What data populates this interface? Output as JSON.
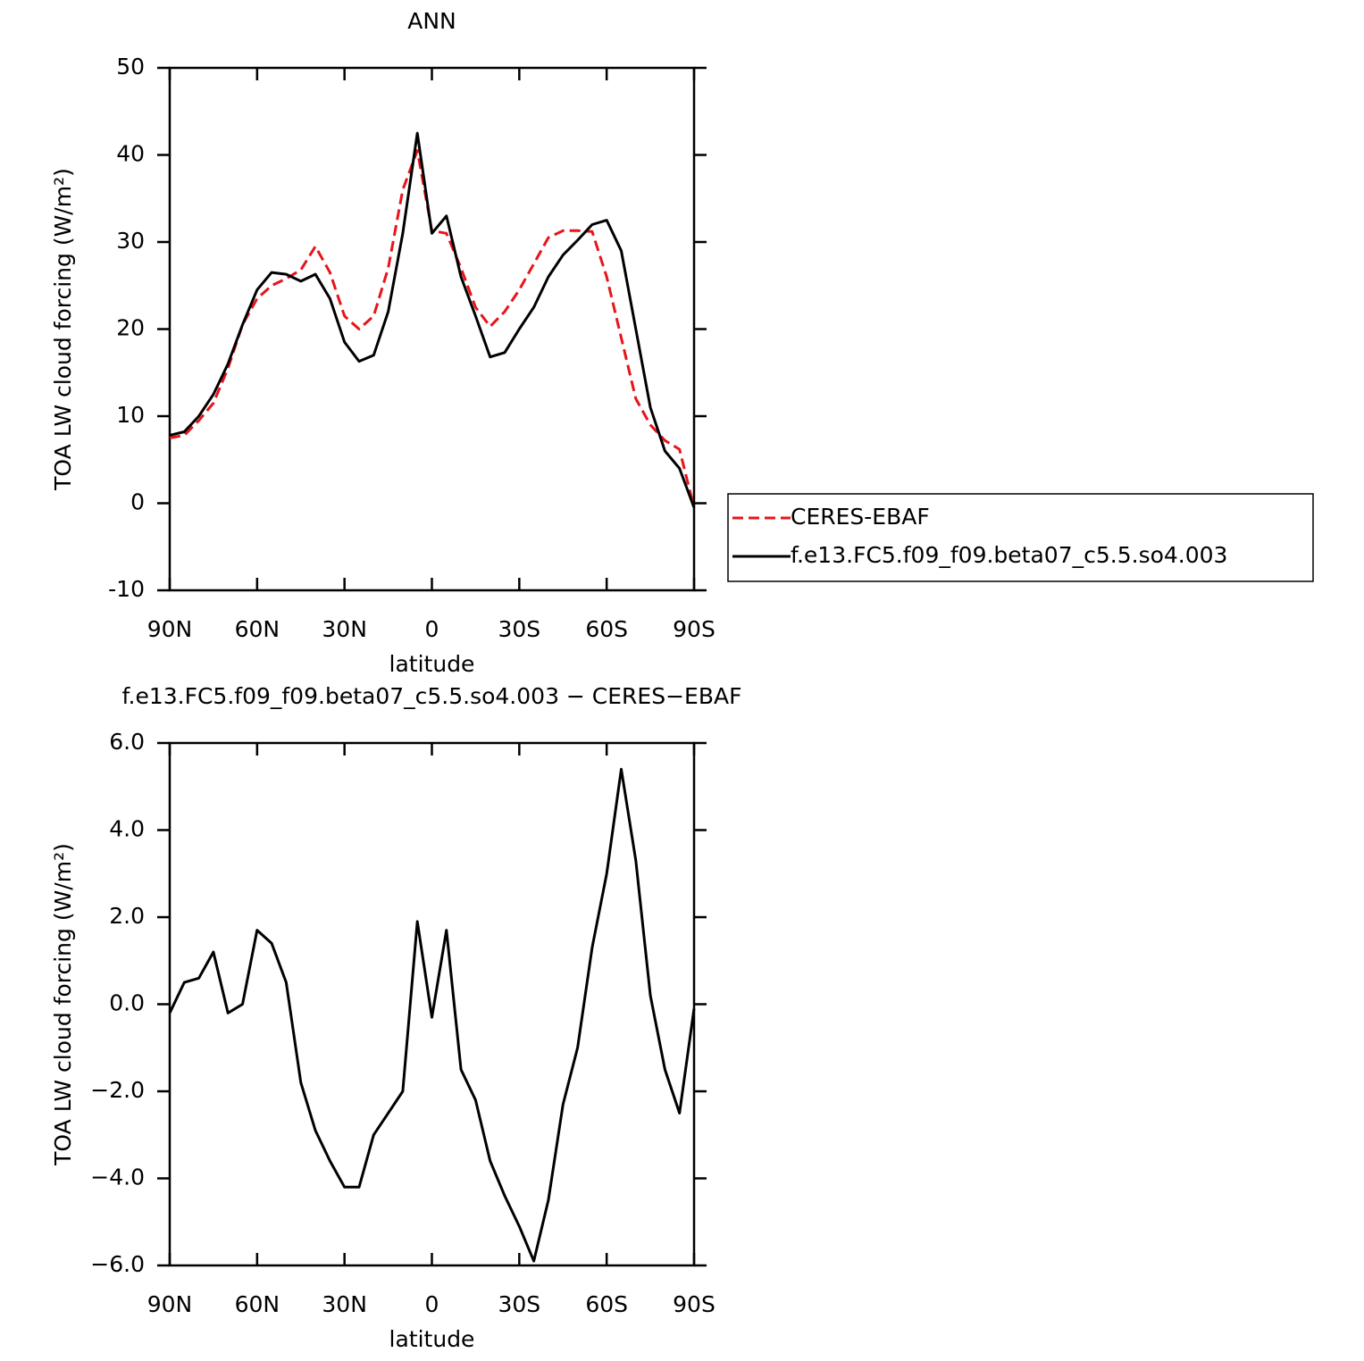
{
  "chart_data": [
    {
      "type": "line",
      "title": "ANN",
      "xlabel": "latitude",
      "ylabel": "TOA LW cloud forcing (W/m²)",
      "x": [
        90,
        85,
        80,
        75,
        70,
        65,
        60,
        55,
        50,
        45,
        40,
        35,
        30,
        25,
        20,
        15,
        10,
        5,
        0,
        -5,
        -10,
        -15,
        -20,
        -25,
        -30,
        -35,
        -40,
        -45,
        -50,
        -55,
        -60,
        -65,
        -70,
        -75,
        -80,
        -85,
        -90
      ],
      "series": [
        {
          "name": "CERES-EBAF",
          "color": "#e8141a",
          "dashed": true,
          "values": [
            7.5,
            7.8,
            9.5,
            11.5,
            15.5,
            20.5,
            23.5,
            25,
            25.8,
            26.8,
            29.5,
            26.5,
            21.5,
            20,
            21.5,
            27,
            36,
            40.5,
            31.3,
            31,
            27,
            22.5,
            20.3,
            22,
            24.5,
            27.5,
            30.5,
            31.3,
            31.3,
            31.2,
            26,
            19,
            12,
            9,
            7.2,
            6.2,
            -0.5
          ]
        },
        {
          "name": "f.e13.FC5.f09_f09.beta07_c5.5.so4.003",
          "color": "#000000",
          "dashed": false,
          "values": [
            7.8,
            8.2,
            10,
            12.5,
            16,
            20.5,
            24.5,
            26.5,
            26.3,
            25.5,
            26.3,
            23.5,
            18.5,
            16.3,
            17,
            22,
            31,
            42.5,
            31,
            33,
            26,
            21.5,
            16.8,
            17.3,
            20,
            22.5,
            26,
            28.5,
            30.2,
            32,
            32.5,
            29,
            20,
            11,
            6,
            4,
            -0.5
          ]
        }
      ],
      "xlim": [
        90,
        -90
      ],
      "xticks": [
        {
          "value": 90,
          "label": "90N"
        },
        {
          "value": 60,
          "label": "60N"
        },
        {
          "value": 30,
          "label": "30N"
        },
        {
          "value": 0,
          "label": "0"
        },
        {
          "value": -30,
          "label": "30S"
        },
        {
          "value": -60,
          "label": "60S"
        },
        {
          "value": -90,
          "label": "90S"
        }
      ],
      "ylim": [
        -10,
        50
      ],
      "yticks": [
        -10,
        0,
        10,
        20,
        30,
        40,
        50
      ],
      "legend": "right"
    },
    {
      "type": "line",
      "title": "f.e13.FC5.f09_f09.beta07_c5.5.so4.003 − CERES−EBAF",
      "xlabel": "latitude",
      "ylabel": "TOA LW cloud forcing (W/m²)",
      "x": [
        90,
        85,
        80,
        75,
        70,
        65,
        60,
        55,
        50,
        45,
        40,
        35,
        30,
        25,
        20,
        15,
        10,
        5,
        0,
        -5,
        -10,
        -15,
        -20,
        -25,
        -30,
        -35,
        -40,
        -45,
        -50,
        -55,
        -60,
        -65,
        -70,
        -75,
        -80,
        -85,
        -90
      ],
      "color": "#000000",
      "values": [
        -0.2,
        0.5,
        0.6,
        1.2,
        -0.2,
        0.0,
        1.7,
        1.4,
        0.5,
        -1.8,
        -2.9,
        -3.6,
        -4.2,
        -4.2,
        -3.0,
        -2.5,
        -2.0,
        1.9,
        -0.3,
        1.7,
        -1.5,
        -2.2,
        -3.6,
        -4.4,
        -5.1,
        -5.9,
        -4.5,
        -2.3,
        -1.0,
        1.3,
        3.0,
        5.4,
        3.3,
        0.2,
        -1.5,
        -2.5,
        -0.1
      ],
      "xlim": [
        90,
        -90
      ],
      "xticks": [
        {
          "value": 90,
          "label": "90N"
        },
        {
          "value": 60,
          "label": "60N"
        },
        {
          "value": 30,
          "label": "30N"
        },
        {
          "value": 0,
          "label": "0"
        },
        {
          "value": -30,
          "label": "30S"
        },
        {
          "value": -60,
          "label": "60S"
        },
        {
          "value": -90,
          "label": "90S"
        }
      ],
      "ylim": [
        -6,
        6
      ],
      "yticks": [
        {
          "value": -6,
          "label": "−6.0"
        },
        {
          "value": -4,
          "label": "−4.0"
        },
        {
          "value": -2,
          "label": "−2.0"
        },
        {
          "value": 0,
          "label": "0.0"
        },
        {
          "value": 2,
          "label": "2.0"
        },
        {
          "value": 4,
          "label": "4.0"
        },
        {
          "value": 6,
          "label": "6.0"
        }
      ]
    }
  ]
}
